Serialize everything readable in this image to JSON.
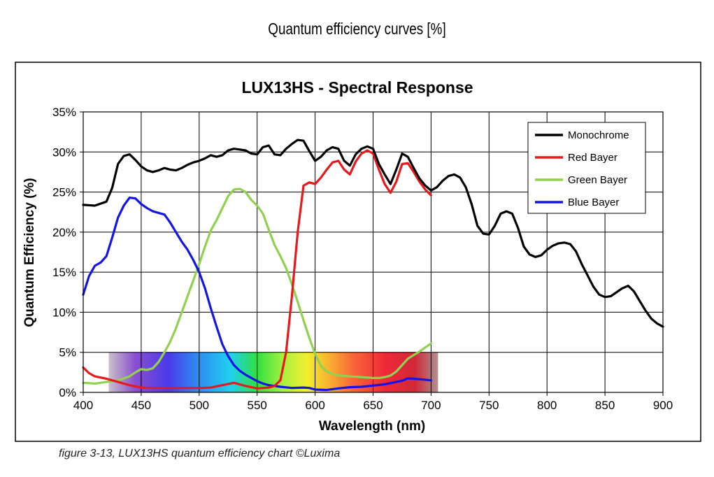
{
  "page": {
    "heading": "Quantum efficiency curves [%]",
    "caption": "figure 3-13, LUX13HS quantum efficiency chart ©Luxima"
  },
  "chart_data": {
    "type": "line",
    "title": "LUX13HS - Spectral Response",
    "xlabel": "Wavelength (nm)",
    "ylabel": "Quantum Efficiency (%)",
    "xlim": [
      400,
      900
    ],
    "ylim": [
      0,
      35
    ],
    "x_ticks": [
      "400",
      "450",
      "500",
      "550",
      "600",
      "650",
      "700",
      "750",
      "800",
      "850",
      "900"
    ],
    "y_ticks": [
      "0%",
      "5%",
      "10%",
      "15%",
      "20%",
      "25%",
      "30%",
      "35%"
    ],
    "grid": true,
    "legend_position": "top-right",
    "spectrum_band": {
      "x_range": [
        422,
        706
      ],
      "y_range": [
        0,
        5
      ]
    },
    "series": [
      {
        "name": "Monochrome",
        "color": "#000000",
        "points": [
          [
            400,
            23.4
          ],
          [
            410,
            23.3
          ],
          [
            420,
            23.8
          ],
          [
            425,
            25.5
          ],
          [
            430,
            28.5
          ],
          [
            435,
            29.5
          ],
          [
            440,
            29.7
          ],
          [
            445,
            29.0
          ],
          [
            450,
            28.2
          ],
          [
            455,
            27.7
          ],
          [
            460,
            27.5
          ],
          [
            465,
            27.7
          ],
          [
            470,
            28.0
          ],
          [
            475,
            27.8
          ],
          [
            480,
            27.7
          ],
          [
            485,
            28.0
          ],
          [
            490,
            28.4
          ],
          [
            495,
            28.7
          ],
          [
            500,
            28.9
          ],
          [
            505,
            29.2
          ],
          [
            510,
            29.6
          ],
          [
            515,
            29.4
          ],
          [
            520,
            29.6
          ],
          [
            525,
            30.2
          ],
          [
            530,
            30.4
          ],
          [
            535,
            30.3
          ],
          [
            540,
            30.2
          ],
          [
            545,
            29.8
          ],
          [
            550,
            29.7
          ],
          [
            555,
            30.6
          ],
          [
            560,
            30.8
          ],
          [
            565,
            29.7
          ],
          [
            570,
            29.6
          ],
          [
            575,
            30.4
          ],
          [
            580,
            31.0
          ],
          [
            585,
            31.5
          ],
          [
            590,
            31.4
          ],
          [
            595,
            30.1
          ],
          [
            600,
            28.9
          ],
          [
            605,
            29.4
          ],
          [
            610,
            30.2
          ],
          [
            615,
            30.6
          ],
          [
            620,
            30.4
          ],
          [
            625,
            28.9
          ],
          [
            630,
            28.3
          ],
          [
            635,
            29.7
          ],
          [
            640,
            30.4
          ],
          [
            645,
            30.7
          ],
          [
            650,
            30.4
          ],
          [
            655,
            28.5
          ],
          [
            660,
            27.2
          ],
          [
            665,
            26.0
          ],
          [
            670,
            27.8
          ],
          [
            675,
            29.8
          ],
          [
            680,
            29.4
          ],
          [
            685,
            28.0
          ],
          [
            690,
            26.7
          ],
          [
            695,
            25.8
          ],
          [
            700,
            25.2
          ],
          [
            705,
            25.6
          ],
          [
            710,
            26.4
          ],
          [
            715,
            27.0
          ],
          [
            720,
            27.2
          ],
          [
            725,
            26.8
          ],
          [
            730,
            25.6
          ],
          [
            735,
            23.5
          ],
          [
            740,
            20.8
          ],
          [
            745,
            19.8
          ],
          [
            750,
            19.7
          ],
          [
            755,
            20.8
          ],
          [
            760,
            22.3
          ],
          [
            765,
            22.6
          ],
          [
            770,
            22.3
          ],
          [
            775,
            20.5
          ],
          [
            780,
            18.2
          ],
          [
            785,
            17.2
          ],
          [
            790,
            16.9
          ],
          [
            795,
            17.1
          ],
          [
            800,
            17.8
          ],
          [
            805,
            18.3
          ],
          [
            810,
            18.6
          ],
          [
            815,
            18.7
          ],
          [
            820,
            18.5
          ],
          [
            825,
            17.6
          ],
          [
            830,
            16.0
          ],
          [
            835,
            14.6
          ],
          [
            840,
            13.2
          ],
          [
            845,
            12.2
          ],
          [
            850,
            11.9
          ],
          [
            855,
            12.0
          ],
          [
            860,
            12.5
          ],
          [
            865,
            13.0
          ],
          [
            870,
            13.3
          ],
          [
            875,
            12.6
          ],
          [
            880,
            11.4
          ],
          [
            885,
            10.2
          ],
          [
            890,
            9.2
          ],
          [
            895,
            8.6
          ],
          [
            900,
            8.2
          ]
        ]
      },
      {
        "name": "Red Bayer",
        "color": "#e8191c",
        "points": [
          [
            400,
            3.1
          ],
          [
            405,
            2.4
          ],
          [
            410,
            2.0
          ],
          [
            420,
            1.7
          ],
          [
            430,
            1.3
          ],
          [
            440,
            0.9
          ],
          [
            450,
            0.6
          ],
          [
            460,
            0.55
          ],
          [
            470,
            0.55
          ],
          [
            480,
            0.55
          ],
          [
            490,
            0.55
          ],
          [
            500,
            0.55
          ],
          [
            510,
            0.6
          ],
          [
            520,
            0.9
          ],
          [
            530,
            1.2
          ],
          [
            540,
            0.8
          ],
          [
            550,
            0.5
          ],
          [
            560,
            0.6
          ],
          [
            565,
            0.8
          ],
          [
            570,
            1.5
          ],
          [
            575,
            5.0
          ],
          [
            580,
            12.0
          ],
          [
            585,
            20.0
          ],
          [
            590,
            25.8
          ],
          [
            595,
            26.2
          ],
          [
            600,
            26.0
          ],
          [
            605,
            26.8
          ],
          [
            610,
            27.8
          ],
          [
            615,
            28.7
          ],
          [
            620,
            28.9
          ],
          [
            625,
            27.8
          ],
          [
            630,
            27.2
          ],
          [
            635,
            28.8
          ],
          [
            640,
            29.8
          ],
          [
            645,
            30.2
          ],
          [
            650,
            29.8
          ],
          [
            655,
            27.8
          ],
          [
            660,
            26.0
          ],
          [
            665,
            24.9
          ],
          [
            670,
            26.3
          ],
          [
            675,
            28.5
          ],
          [
            680,
            28.6
          ],
          [
            685,
            27.5
          ],
          [
            690,
            26.3
          ],
          [
            695,
            25.3
          ],
          [
            700,
            24.6
          ]
        ]
      },
      {
        "name": "Green Bayer",
        "color": "#92d050",
        "points": [
          [
            400,
            1.2
          ],
          [
            410,
            1.1
          ],
          [
            420,
            1.3
          ],
          [
            430,
            1.5
          ],
          [
            440,
            2.0
          ],
          [
            445,
            2.5
          ],
          [
            450,
            2.9
          ],
          [
            455,
            2.8
          ],
          [
            460,
            3.0
          ],
          [
            465,
            3.8
          ],
          [
            470,
            5.0
          ],
          [
            475,
            6.3
          ],
          [
            480,
            8.0
          ],
          [
            485,
            10.0
          ],
          [
            490,
            12.0
          ],
          [
            495,
            14.0
          ],
          [
            500,
            16.0
          ],
          [
            505,
            18.2
          ],
          [
            510,
            20.2
          ],
          [
            515,
            21.5
          ],
          [
            520,
            23.0
          ],
          [
            525,
            24.5
          ],
          [
            530,
            25.3
          ],
          [
            535,
            25.4
          ],
          [
            540,
            25.0
          ],
          [
            545,
            24.0
          ],
          [
            550,
            23.3
          ],
          [
            555,
            22.3
          ],
          [
            560,
            20.3
          ],
          [
            565,
            18.4
          ],
          [
            570,
            17.0
          ],
          [
            575,
            15.5
          ],
          [
            580,
            13.5
          ],
          [
            585,
            11.3
          ],
          [
            590,
            9.0
          ],
          [
            595,
            6.8
          ],
          [
            600,
            4.8
          ],
          [
            605,
            3.3
          ],
          [
            610,
            2.6
          ],
          [
            615,
            2.3
          ],
          [
            620,
            2.1
          ],
          [
            630,
            2.0
          ],
          [
            640,
            1.9
          ],
          [
            650,
            1.8
          ],
          [
            655,
            1.8
          ],
          [
            660,
            1.9
          ],
          [
            665,
            2.1
          ],
          [
            670,
            2.6
          ],
          [
            675,
            3.4
          ],
          [
            680,
            4.2
          ],
          [
            690,
            5.1
          ],
          [
            700,
            6.1
          ]
        ]
      },
      {
        "name": "Blue Bayer",
        "color": "#1414e6",
        "points": [
          [
            400,
            12.2
          ],
          [
            405,
            14.5
          ],
          [
            410,
            15.8
          ],
          [
            415,
            16.2
          ],
          [
            420,
            17.0
          ],
          [
            425,
            19.3
          ],
          [
            430,
            21.8
          ],
          [
            435,
            23.3
          ],
          [
            440,
            24.3
          ],
          [
            445,
            24.2
          ],
          [
            450,
            23.5
          ],
          [
            455,
            23.0
          ],
          [
            460,
            22.6
          ],
          [
            465,
            22.4
          ],
          [
            470,
            22.2
          ],
          [
            475,
            21.2
          ],
          [
            480,
            20.0
          ],
          [
            485,
            18.8
          ],
          [
            490,
            17.8
          ],
          [
            495,
            16.5
          ],
          [
            500,
            15.0
          ],
          [
            505,
            13.0
          ],
          [
            510,
            10.5
          ],
          [
            515,
            8.2
          ],
          [
            520,
            6.0
          ],
          [
            525,
            4.5
          ],
          [
            530,
            3.4
          ],
          [
            535,
            2.7
          ],
          [
            540,
            2.2
          ],
          [
            545,
            1.8
          ],
          [
            550,
            1.4
          ],
          [
            555,
            1.1
          ],
          [
            560,
            0.9
          ],
          [
            570,
            0.7
          ],
          [
            580,
            0.55
          ],
          [
            590,
            0.6
          ],
          [
            595,
            0.55
          ],
          [
            600,
            0.35
          ],
          [
            610,
            0.3
          ],
          [
            620,
            0.5
          ],
          [
            630,
            0.65
          ],
          [
            640,
            0.7
          ],
          [
            650,
            0.85
          ],
          [
            660,
            1.0
          ],
          [
            670,
            1.3
          ],
          [
            675,
            1.45
          ],
          [
            680,
            1.75
          ],
          [
            690,
            1.65
          ],
          [
            700,
            1.5
          ]
        ]
      }
    ]
  }
}
